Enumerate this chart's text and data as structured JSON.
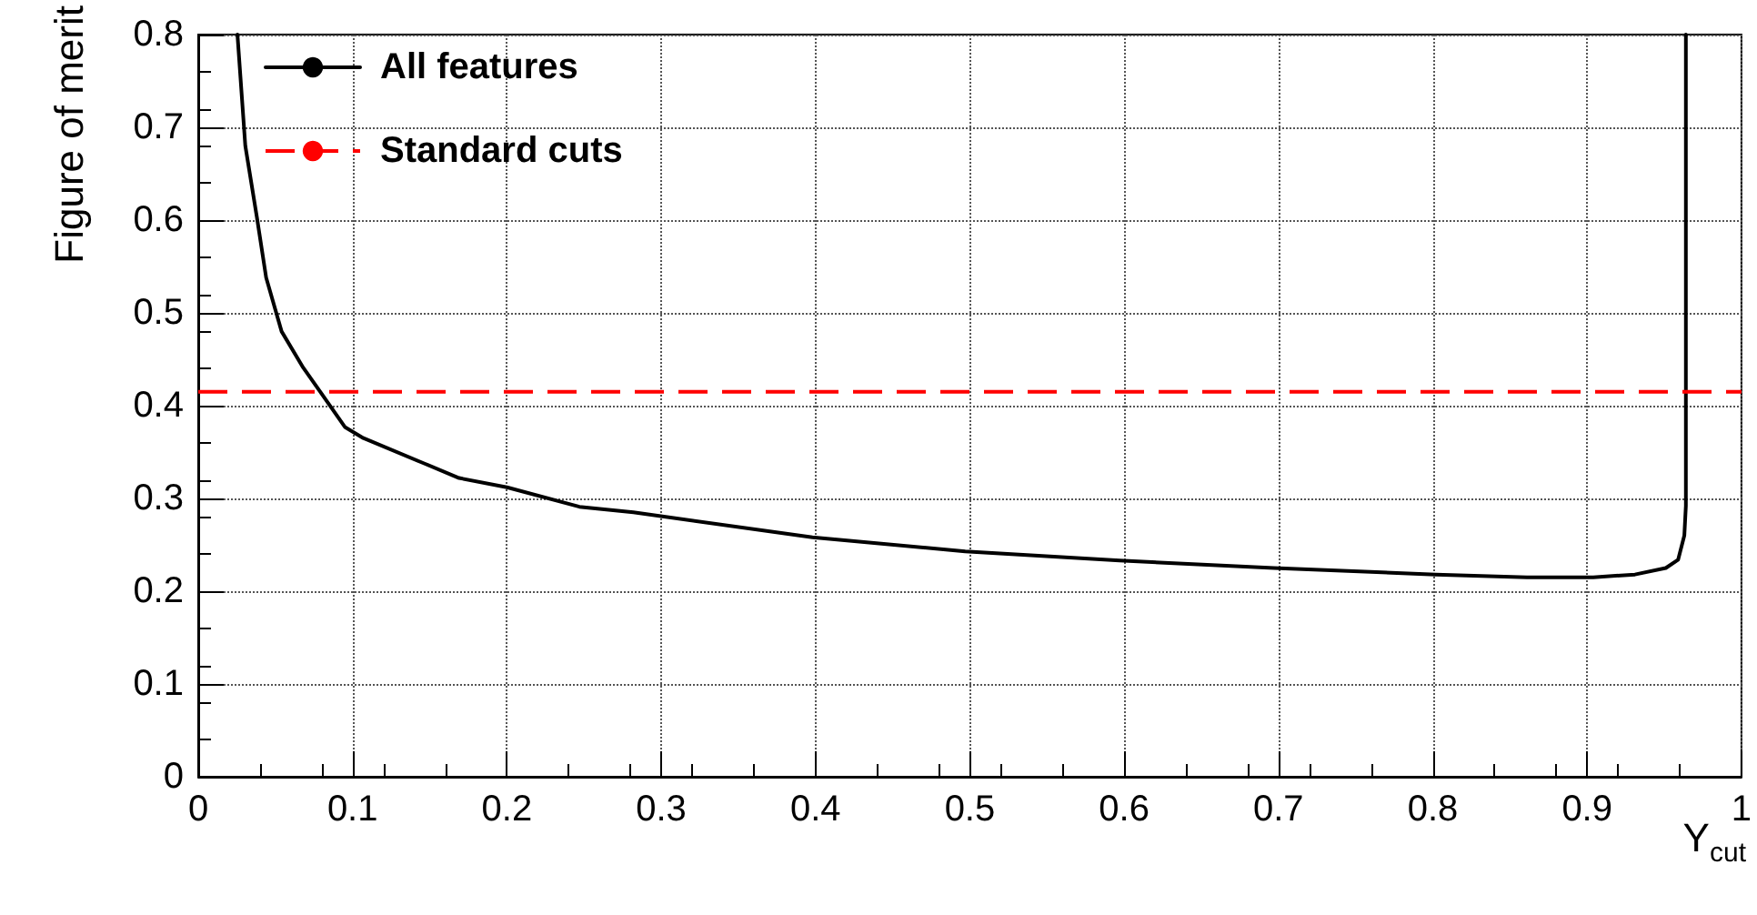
{
  "chart_data": {
    "type": "line",
    "xlabel": "Y$_{cut}$",
    "ylabel": "Figure of merit",
    "x": [
      0.0254,
      0.0305,
      0.038,
      0.044,
      0.054,
      0.068,
      0.079,
      0.095,
      0.107,
      0.146,
      0.169,
      0.2,
      0.247,
      0.282,
      0.398,
      0.497,
      0.597,
      0.697,
      0.802,
      0.861,
      0.904,
      0.931,
      0.951,
      0.959,
      0.963,
      0.964,
      0.964
    ],
    "series": [
      {
        "name": "All features",
        "color": "#000000",
        "values": [
          0.8,
          0.68,
          0.603,
          0.538,
          0.48,
          0.441,
          0.415,
          0.377,
          0.365,
          0.338,
          0.322,
          0.312,
          0.291,
          0.285,
          0.258,
          0.243,
          0.233,
          0.225,
          0.218,
          0.215,
          0.215,
          0.218,
          0.225,
          0.234,
          0.26,
          0.292,
          0.8
        ]
      }
    ],
    "ref_lines": [
      {
        "axis": "y",
        "value": 0.415,
        "label": "Standard cuts",
        "color": "#ff0000",
        "line_style": "dashed"
      }
    ],
    "xlim": [
      0,
      1
    ],
    "xticks": [
      0,
      0.1,
      0.2,
      0.3,
      0.4,
      0.5,
      0.6,
      0.7,
      0.8,
      0.9,
      1
    ],
    "ylim": [
      0,
      0.8
    ],
    "yticks": [
      0,
      0.1,
      0.2,
      0.3,
      0.4,
      0.5,
      0.6,
      0.7,
      0.8
    ],
    "grid": true,
    "legend": "top left",
    "marker": "none",
    "line_style": "solid"
  }
}
